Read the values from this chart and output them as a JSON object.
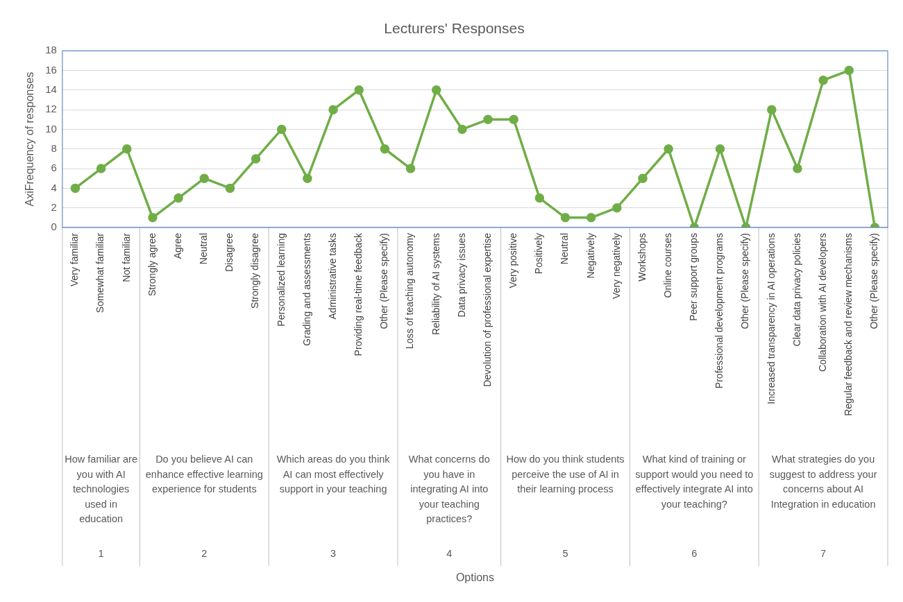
{
  "chart_data": {
    "type": "line",
    "title": "Lecturers' Responses",
    "ylabel": "AxiFrequency of responses",
    "categories": [
      "Very familiar",
      "Somewhat familiar",
      "Not familiar",
      "Strongly agree",
      "Agree",
      "Neutral",
      "Disagree",
      "Strongly disagree",
      "Personalized learning",
      "Grading and assessments",
      "Administrative tasks",
      "Providing real-time feedback",
      "Other (Please specify)",
      "Loss of teaching autonomy",
      "Reliability of AI systems",
      "Data privacy issues",
      "Devolution of professional expertise",
      "Very positive",
      "Positively",
      "Neutral",
      "Negatively",
      "Very negatively",
      "Workshops",
      "Online courses",
      "Peer support groups",
      "Professional development programs",
      "Other (Please specify)",
      "Increased transparency in AI operations",
      "Clear data privacy policies",
      "Collaboration with AI developers",
      "Regular feedback and review mechanisms",
      "Other (Please specify)"
    ],
    "series": [
      {
        "color": "#70ad47",
        "values": [
          4,
          6,
          8,
          1,
          3,
          5,
          4,
          7,
          10,
          5,
          12,
          14,
          8,
          6,
          14,
          10,
          11,
          11,
          3,
          1,
          1,
          2,
          5,
          8,
          0,
          8,
          0,
          12,
          6,
          15,
          16,
          0
        ]
      }
    ],
    "ylim": [
      0,
      18
    ],
    "yticks": [
      0,
      2,
      4,
      6,
      8,
      10,
      12,
      14,
      16,
      18
    ],
    "grid": "y",
    "legend": false,
    "marker": "circle",
    "line_style": "solid",
    "annotations": [
      "How familiar are you with AI technologies used in education",
      "1",
      "Do you believe AI can enhance effective learning experience for students",
      "2",
      "Which areas do you think AI can most effectively support in your teaching",
      "3",
      "What concerns do you have in integrating AI into your teaching practices?",
      "4",
      "How do you think students perceive the use of AI in their learning process",
      "5",
      "What kind of training or support would you need to effectively integrate AI into your teaching?",
      "6",
      "What strategies do you suggest to address your concerns about AI Integration in education",
      "7",
      "Options"
    ]
  }
}
